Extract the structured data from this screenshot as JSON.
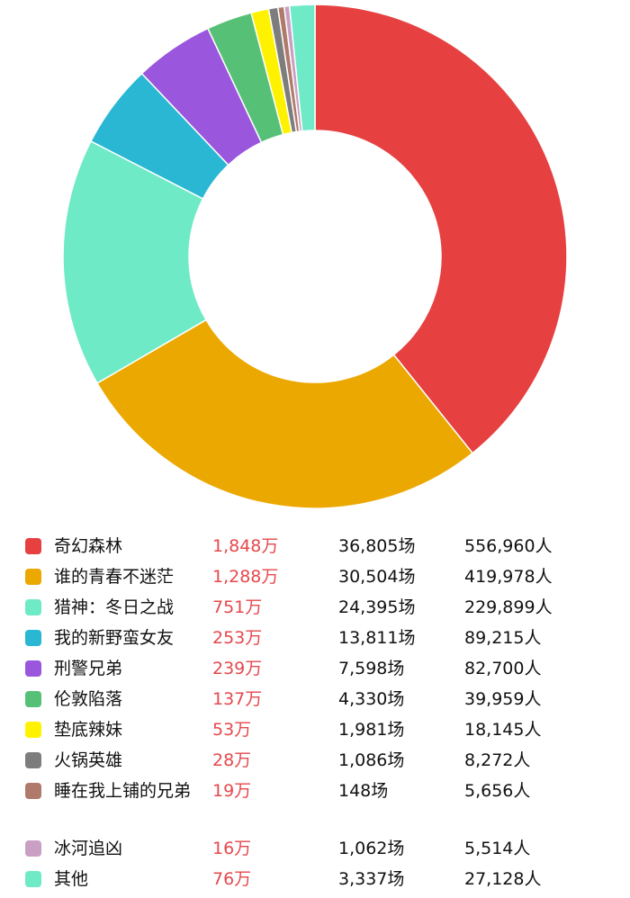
{
  "chart_data": {
    "type": "pie",
    "donut": true,
    "unit": "万",
    "slices": [
      {
        "label": "奇幻森林",
        "value": 1848,
        "box": "1,848万",
        "shows": "36,805场",
        "people": "556,960人",
        "color": "#e64040"
      },
      {
        "label": "谁的青春不迷茫",
        "value": 1288,
        "box": "1,288万",
        "shows": "30,504场",
        "people": "419,978人",
        "color": "#eba800"
      },
      {
        "label": "猎神：冬日之战",
        "value": 751,
        "box": "751万",
        "shows": "24,395场",
        "people": "229,899人",
        "color": "#6eeac6"
      },
      {
        "label": "我的新野蛮女友",
        "value": 253,
        "box": "253万",
        "shows": "13,811场",
        "people": "89,215人",
        "color": "#29b7d3"
      },
      {
        "label": "刑警兄弟",
        "value": 239,
        "box": "239万",
        "shows": "7,598场",
        "people": "82,700人",
        "color": "#9a56dc"
      },
      {
        "label": "伦敦陷落",
        "value": 137,
        "box": "137万",
        "shows": "4,330场",
        "people": "39,959人",
        "color": "#57c077"
      },
      {
        "label": "垫底辣妹",
        "value": 53,
        "box": "53万",
        "shows": "1,981场",
        "people": "18,145人",
        "color": "#fff200"
      },
      {
        "label": "火锅英雄",
        "value": 28,
        "box": "28万",
        "shows": "1,086场",
        "people": "8,272人",
        "color": "#7d7d7d"
      },
      {
        "label": "睡在我上铺的兄弟",
        "value": 19,
        "box": "19万",
        "shows": "148场",
        "people": "5,656人",
        "color": "#b07a6b"
      },
      {
        "label": "冰河追凶",
        "value": 16,
        "box": "16万",
        "shows": "1,062场",
        "people": "5,514人",
        "color": "#c9a0c4"
      },
      {
        "label": "其他",
        "value": 76,
        "box": "76万",
        "shows": "3,337场",
        "people": "27,128人",
        "color": "#6eeac6"
      }
    ],
    "legend_position": "bottom"
  }
}
